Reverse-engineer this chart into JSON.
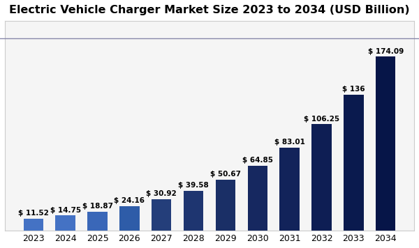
{
  "title": "Electric Vehicle Charger Market Size 2023 to 2034 (USD Billion)",
  "years": [
    "2023",
    "2024",
    "2025",
    "2026",
    "2027",
    "2028",
    "2029",
    "2030",
    "2031",
    "2032",
    "2033",
    "2034"
  ],
  "values": [
    11.52,
    14.75,
    18.87,
    24.16,
    30.92,
    39.58,
    50.67,
    64.85,
    83.01,
    106.25,
    136,
    174.09
  ],
  "labels": [
    "$ 11.52",
    "$ 14.75",
    "$ 18.87",
    "$ 24.16",
    "$ 30.92",
    "$ 39.58",
    "$ 50.67",
    "$ 64.85",
    "$ 83.01",
    "$ 106.25",
    "$ 136",
    "$ 174.09"
  ],
  "bar_colors": [
    "#4472c4",
    "#4472c4",
    "#3a67b8",
    "#2e5ca8",
    "#243e7a",
    "#1e3570",
    "#1a2f66",
    "#162860",
    "#12235a",
    "#0e1e54",
    "#0a1a4e",
    "#061548"
  ],
  "background_color": "#ffffff",
  "plot_bg_color": "#f5f5f5",
  "title_fontsize": 11.5,
  "label_fontsize": 7.5,
  "tick_fontsize": 9,
  "ylim": [
    0,
    210
  ],
  "separator_color": "#8888aa",
  "spine_color": "#cccccc"
}
